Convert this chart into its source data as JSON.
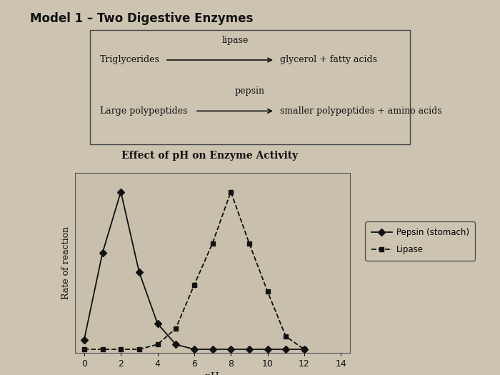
{
  "title": "Effect of pH on Enzyme Activity",
  "xlabel": "pH",
  "ylabel": "Rate of reaction",
  "background_color": "#ccc4b0",
  "plot_bg_color": "#c8c0ac",
  "pepsin_x": [
    0,
    1,
    2,
    3,
    4,
    5,
    6,
    7,
    8,
    9,
    10,
    11,
    12
  ],
  "pepsin_y": [
    0.08,
    0.62,
    1.0,
    0.5,
    0.18,
    0.05,
    0.02,
    0.02,
    0.02,
    0.02,
    0.02,
    0.02,
    0.02
  ],
  "lipase_x": [
    0,
    1,
    2,
    3,
    4,
    5,
    6,
    7,
    8,
    9,
    10,
    11,
    12
  ],
  "lipase_y": [
    0.02,
    0.02,
    0.02,
    0.02,
    0.05,
    0.15,
    0.42,
    0.68,
    1.0,
    0.68,
    0.38,
    0.1,
    0.02
  ],
  "xlim": [
    -0.5,
    14.5
  ],
  "ylim": [
    0,
    1.12
  ],
  "xticks": [
    0,
    2,
    4,
    6,
    8,
    10,
    12,
    14
  ],
  "line_color": "#111111",
  "grid_color": "#999999",
  "model_title": "Model 1 – Two Digestive Enzymes",
  "box_enzyme1": "lipase",
  "box_text1a": "Triglycerides",
  "box_text1b": "glycerol + fatty acids",
  "box_enzyme2": "pepsin",
  "box_text2a": "Large polypeptides",
  "box_text2b": "smaller polypeptides + amino acids",
  "legend_pepsin": "Pepsin (stomach)",
  "legend_lipase": "Lipase"
}
